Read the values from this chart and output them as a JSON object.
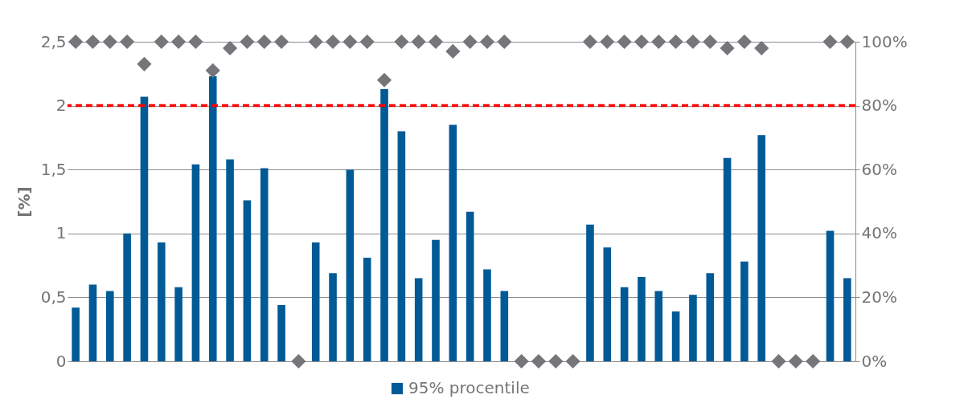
{
  "chart_data": {
    "type": "bar",
    "ylabel": "[%]",
    "categories": [
      null,
      null,
      null,
      null,
      null,
      null,
      null,
      null,
      null,
      null,
      null,
      null,
      null,
      null,
      null,
      null,
      null,
      null,
      null,
      null,
      null,
      null,
      null,
      null,
      null,
      null,
      null,
      null,
      null,
      null,
      null,
      null,
      null,
      null,
      null,
      null,
      null,
      null,
      null,
      null,
      null,
      null,
      null,
      null,
      null,
      null
    ],
    "series": [
      {
        "name": "95% procentile",
        "color": "#005a96",
        "values": [
          0.42,
          0.6,
          0.55,
          1.0,
          2.07,
          0.93,
          0.58,
          1.54,
          2.23,
          1.58,
          1.26,
          1.51,
          0.44,
          null,
          0.93,
          0.69,
          1.5,
          0.81,
          2.13,
          1.8,
          0.65,
          0.95,
          1.85,
          1.17,
          0.72,
          0.55,
          null,
          null,
          null,
          null,
          1.07,
          0.89,
          0.58,
          0.66,
          0.55,
          0.39,
          0.52,
          0.69,
          1.59,
          0.78,
          1.77,
          null,
          null,
          null,
          1.02,
          0.65
        ]
      },
      {
        "type": "scatter",
        "axis": "y2",
        "marker": "diamond",
        "color": "#75767a",
        "values": [
          100,
          100,
          100,
          100,
          93,
          100,
          100,
          100,
          91,
          98,
          100,
          100,
          100,
          0,
          100,
          100,
          100,
          100,
          88,
          100,
          100,
          100,
          97,
          100,
          100,
          100,
          0,
          0,
          0,
          0,
          100,
          100,
          100,
          100,
          100,
          100,
          100,
          100,
          98,
          100,
          98,
          0,
          0,
          0,
          100,
          100
        ]
      }
    ],
    "ylim": [
      0,
      2.5
    ],
    "yticks": [
      0,
      {
        "value": 0.5,
        "label": "0,5"
      },
      1,
      {
        "value": 1.5,
        "label": "1,5"
      },
      2,
      {
        "value": 2.5,
        "label": "2,5"
      }
    ],
    "y2lim": [
      0,
      100
    ],
    "y2ticks": [
      {
        "value": 0,
        "label": "0%"
      },
      {
        "value": 20,
        "label": "20%"
      },
      {
        "value": 40,
        "label": "40%"
      },
      {
        "value": 60,
        "label": "60%"
      },
      {
        "value": 80,
        "label": "80%"
      },
      {
        "value": 100,
        "label": "100%"
      }
    ],
    "ref_lines": [
      {
        "axis": "y",
        "value": 2,
        "color": "#ff0000",
        "line_style": "dashed"
      }
    ],
    "grid": "y",
    "legend": "bottom"
  }
}
